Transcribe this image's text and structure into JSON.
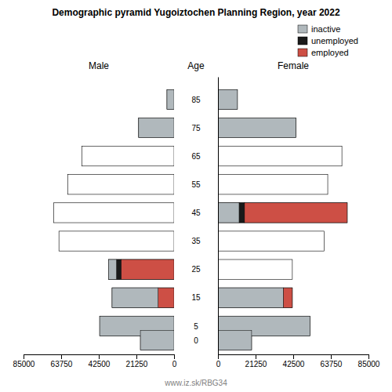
{
  "chart_data": {
    "type": "bar",
    "orientation": "horizontal",
    "stacked": true,
    "grid": false,
    "legend": "upper right",
    "title": "Demographic pyramid Yugoiztochen Planning Region, year 2022",
    "ylabel": "Age",
    "y": [
      85,
      75,
      65,
      55,
      45,
      35,
      25,
      15,
      5,
      0
    ],
    "ylim": [
      -5,
      93
    ],
    "yticks": [
      85,
      75,
      65,
      55,
      45,
      35,
      25,
      15,
      5,
      0
    ],
    "series": [
      {
        "name": "inactive",
        "color": "#b0b8bc"
      },
      {
        "name": "unemployed",
        "color": "#1a1a1a"
      },
      {
        "name": "employed",
        "color": "#cd4f45"
      }
    ],
    "panels": [
      {
        "title": "Male",
        "xlim": [
          85000,
          0
        ],
        "xticks": [
          85000,
          63750,
          42500,
          21250,
          0
        ],
        "total": [
          4000,
          20000,
          52000,
          60000,
          68000,
          65000,
          37000,
          35000,
          42000,
          19000
        ],
        "series": [
          {
            "values": [
              4000,
              20000,
              0,
              0,
              0,
              0,
              4500,
              26000,
              42000,
              19000
            ]
          },
          {
            "values": [
              0,
              0,
              0,
              0,
              0,
              0,
              2500,
              0,
              0,
              0
            ]
          },
          {
            "values": [
              0,
              0,
              0,
              0,
              0,
              0,
              30000,
              9000,
              0,
              0
            ]
          }
        ]
      },
      {
        "title": "Female",
        "xlim": [
          0,
          85000
        ],
        "xticks": [
          0,
          21250,
          42500,
          63750,
          85000
        ],
        "total": [
          11000,
          44000,
          70000,
          62000,
          73000,
          60000,
          42000,
          42000,
          52000,
          19000
        ],
        "series": [
          {
            "values": [
              11000,
              44000,
              0,
              0,
              12000,
              0,
              0,
              37000,
              52000,
              19000
            ]
          },
          {
            "values": [
              0,
              0,
              0,
              0,
              3000,
              0,
              0,
              0,
              0,
              0
            ]
          },
          {
            "values": [
              0,
              0,
              0,
              0,
              58000,
              0,
              0,
              5000,
              0,
              0
            ]
          }
        ]
      }
    ],
    "annotations": [
      "www.iz.sk/RBG34"
    ]
  }
}
